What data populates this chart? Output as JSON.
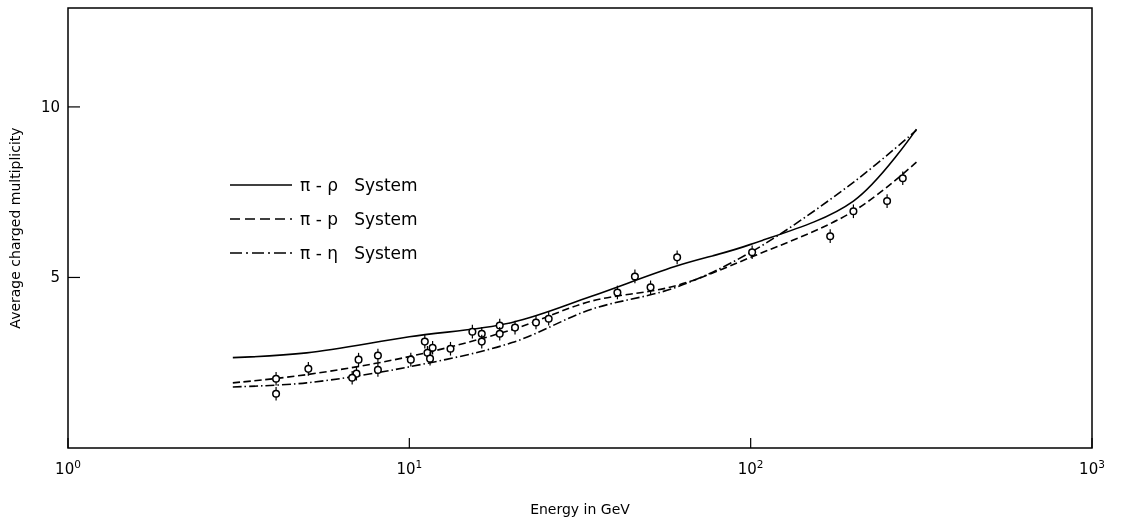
{
  "chart_data": {
    "type": "line",
    "xlabel": "Energy in GeV",
    "ylabel": "Average charged multiplicity",
    "log": "x",
    "xlim": [
      1,
      1000
    ],
    "xticks": [
      {
        "value": 1,
        "label": "10$^{0}$"
      },
      {
        "value": 10,
        "label": "10$^{1}$"
      },
      {
        "value": 100,
        "label": "10$^{2}$"
      },
      {
        "value": 1000,
        "label": "10$^{3}$"
      }
    ],
    "ylim": [
      0,
      12.9
    ],
    "yticks": [
      5,
      10
    ],
    "grid": false,
    "legend": "top left",
    "series": [
      {
        "name": "π - ρ   System",
        "color": "#000000",
        "line_style": "solid",
        "marker": "none",
        "x": [
          3.04,
          5,
          10,
          20,
          34,
          60,
          100,
          200,
          306
        ],
        "values": [
          2.65,
          2.79,
          3.26,
          3.68,
          4.44,
          5.32,
          5.97,
          7.24,
          9.35
        ]
      },
      {
        "name": "π - p   System",
        "color": "#000000",
        "line_style": "dashed",
        "marker": "none",
        "x": [
          3.04,
          5,
          10,
          20,
          34,
          60,
          100,
          200,
          306
        ],
        "values": [
          1.91,
          2.15,
          2.68,
          3.47,
          4.3,
          4.75,
          5.59,
          6.94,
          8.38
        ]
      },
      {
        "name": "π - η   System",
        "color": "#000000",
        "line_style": "dashdot",
        "marker": "none",
        "x": [
          3.04,
          5,
          10,
          20,
          34,
          60,
          100,
          200,
          306
        ],
        "values": [
          1.79,
          1.91,
          2.38,
          3.09,
          4.06,
          4.7,
          5.74,
          7.79,
          9.32
        ]
      },
      {
        "type": "scatter",
        "color": "#000000",
        "marker": "circle",
        "x": [
          4.07,
          4.07,
          5.06,
          7.1,
          7.0,
          6.8,
          8.09,
          8.09,
          10.1,
          11.1,
          11.3,
          11.5,
          11.7,
          13.2,
          15.3,
          16.3,
          16.3,
          18.4,
          18.4,
          20.4,
          23.5,
          25.6,
          40.7,
          45.8,
          50.9,
          60.9,
          101,
          171,
          200,
          251,
          279
        ],
        "values": [
          2.03,
          1.59,
          2.32,
          2.59,
          2.18,
          2.06,
          2.71,
          2.29,
          2.59,
          3.12,
          2.79,
          2.62,
          2.94,
          2.91,
          3.41,
          3.35,
          3.12,
          3.59,
          3.35,
          3.53,
          3.68,
          3.79,
          4.56,
          5.03,
          4.71,
          5.59,
          5.74,
          6.21,
          6.94,
          7.24,
          7.91
        ],
        "errors": [
          0.2,
          0.2,
          0.2,
          0.2,
          0.2,
          0.2,
          0.2,
          0.2,
          0.2,
          0.2,
          0.2,
          0.2,
          0.2,
          0.2,
          0.2,
          0.2,
          0.2,
          0.2,
          0.2,
          0.2,
          0.2,
          0.2,
          0.2,
          0.2,
          0.2,
          0.2,
          0.2,
          0.2,
          0.2,
          0.2,
          0.2
        ]
      }
    ]
  }
}
